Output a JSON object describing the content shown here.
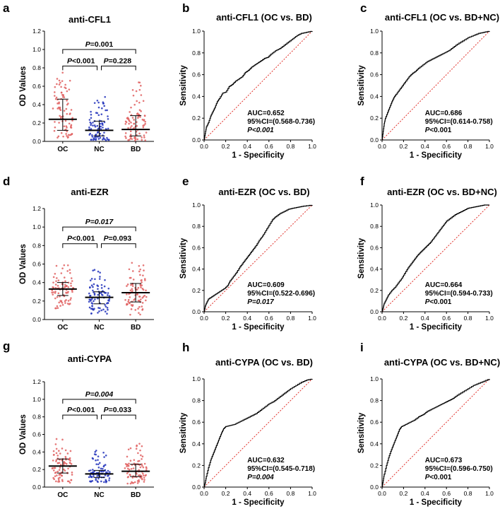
{
  "colors": {
    "oc": "#e06060",
    "nc": "#2233bb",
    "bd": "#e06060",
    "diag": "#e0302a",
    "roc": "#000000"
  },
  "chart_data": [
    {
      "panel": "a",
      "type": "scatter",
      "title": "anti-CFL1",
      "ylabel": "OD Values",
      "ylim": [
        0,
        1.2
      ],
      "yticks": [
        "0.0",
        "0.2",
        "0.4",
        "0.6",
        "0.8",
        "1.0",
        "1.2"
      ],
      "categories": [
        "OC",
        "NC",
        "BD"
      ],
      "groups": [
        {
          "name": "OC",
          "median": 0.24,
          "q1": 0.12,
          "q3": 0.46,
          "min": 0.03,
          "max": 0.75
        },
        {
          "name": "NC",
          "median": 0.12,
          "q1": 0.06,
          "q3": 0.22,
          "min": 0.01,
          "max": 0.5
        },
        {
          "name": "BD",
          "median": 0.13,
          "q1": 0.06,
          "q3": 0.28,
          "min": 0.01,
          "max": 0.71
        }
      ],
      "brackets": [
        {
          "from": "OC",
          "to": "BD",
          "y": 1.0,
          "prefix": "P",
          "value": "=0.001",
          "italic": false
        },
        {
          "from": "OC",
          "to": "NC",
          "y": 0.82,
          "prefix": "P",
          "value": "<0.001",
          "italic": false
        },
        {
          "from": "NC",
          "to": "BD",
          "y": 0.82,
          "prefix": "P",
          "value": "=0.228",
          "italic": false
        }
      ]
    },
    {
      "panel": "b",
      "type": "line",
      "title": "anti-CFL1 (OC vs. BD)",
      "xlabel": "1 - Specificity",
      "ylabel": "Sensitivity",
      "xlim": [
        0,
        1
      ],
      "ylim": [
        0,
        1
      ],
      "ticks": [
        "0.0",
        "0.2",
        "0.4",
        "0.6",
        "0.8",
        "1.0"
      ],
      "auc": "AUC=0.652",
      "ci": "95%CI=(0.568-0.736)",
      "p": "P<0.001",
      "p_italic": true,
      "roc": [
        [
          0,
          0
        ],
        [
          0.01,
          0.06
        ],
        [
          0.02,
          0.12
        ],
        [
          0.04,
          0.16
        ],
        [
          0.06,
          0.22
        ],
        [
          0.08,
          0.26
        ],
        [
          0.1,
          0.3
        ],
        [
          0.12,
          0.35
        ],
        [
          0.14,
          0.38
        ],
        [
          0.17,
          0.43
        ],
        [
          0.2,
          0.44
        ],
        [
          0.23,
          0.49
        ],
        [
          0.26,
          0.51
        ],
        [
          0.29,
          0.54
        ],
        [
          0.32,
          0.56
        ],
        [
          0.35,
          0.58
        ],
        [
          0.38,
          0.62
        ],
        [
          0.41,
          0.64
        ],
        [
          0.44,
          0.67
        ],
        [
          0.47,
          0.69
        ],
        [
          0.5,
          0.71
        ],
        [
          0.53,
          0.73
        ],
        [
          0.56,
          0.75
        ],
        [
          0.59,
          0.76
        ],
        [
          0.62,
          0.79
        ],
        [
          0.66,
          0.82
        ],
        [
          0.7,
          0.84
        ],
        [
          0.74,
          0.87
        ],
        [
          0.78,
          0.9
        ],
        [
          0.82,
          0.93
        ],
        [
          0.86,
          0.96
        ],
        [
          0.9,
          0.98
        ],
        [
          0.95,
          0.99
        ],
        [
          1,
          1
        ]
      ]
    },
    {
      "panel": "c",
      "type": "line",
      "title": "anti-CFL1 (OC vs. BD+NC)",
      "xlabel": "1 - Specificity",
      "ylabel": "Sensitivity",
      "xlim": [
        0,
        1
      ],
      "ylim": [
        0,
        1
      ],
      "ticks": [
        "0.0",
        "0.2",
        "0.4",
        "0.6",
        "0.8",
        "1.0"
      ],
      "auc": "AUC=0.686",
      "ci": "95%CI=(0.614-0.758)",
      "p": "P<0.001",
      "p_italic": false,
      "roc": [
        [
          0,
          0
        ],
        [
          0.01,
          0.08
        ],
        [
          0.02,
          0.15
        ],
        [
          0.03,
          0.2
        ],
        [
          0.05,
          0.25
        ],
        [
          0.07,
          0.3
        ],
        [
          0.09,
          0.35
        ],
        [
          0.11,
          0.39
        ],
        [
          0.13,
          0.42
        ],
        [
          0.16,
          0.46
        ],
        [
          0.19,
          0.5
        ],
        [
          0.22,
          0.54
        ],
        [
          0.25,
          0.58
        ],
        [
          0.28,
          0.61
        ],
        [
          0.31,
          0.63
        ],
        [
          0.34,
          0.66
        ],
        [
          0.38,
          0.69
        ],
        [
          0.42,
          0.72
        ],
        [
          0.46,
          0.74
        ],
        [
          0.5,
          0.76
        ],
        [
          0.54,
          0.78
        ],
        [
          0.58,
          0.8
        ],
        [
          0.62,
          0.82
        ],
        [
          0.66,
          0.85
        ],
        [
          0.7,
          0.88
        ],
        [
          0.75,
          0.91
        ],
        [
          0.8,
          0.94
        ],
        [
          0.85,
          0.96
        ],
        [
          0.9,
          0.98
        ],
        [
          0.95,
          0.99
        ],
        [
          1,
          1
        ]
      ]
    },
    {
      "panel": "d",
      "type": "scatter",
      "title": "anti-EZR",
      "ylabel": "OD Values",
      "ylim": [
        0,
        1.2
      ],
      "yticks": [
        "0.0",
        "0.2",
        "0.4",
        "0.6",
        "0.8",
        "1.0",
        "1.2"
      ],
      "categories": [
        "OC",
        "NC",
        "BD"
      ],
      "groups": [
        {
          "name": "OC",
          "median": 0.33,
          "q1": 0.26,
          "q3": 0.4,
          "min": 0.12,
          "max": 0.6
        },
        {
          "name": "NC",
          "median": 0.24,
          "q1": 0.17,
          "q3": 0.3,
          "min": 0.06,
          "max": 0.56
        },
        {
          "name": "BD",
          "median": 0.29,
          "q1": 0.19,
          "q3": 0.39,
          "min": 0.05,
          "max": 0.62
        }
      ],
      "brackets": [
        {
          "from": "OC",
          "to": "BD",
          "y": 1.0,
          "prefix": "P",
          "value": "=0.017",
          "italic": true
        },
        {
          "from": "OC",
          "to": "NC",
          "y": 0.82,
          "prefix": "P",
          "value": "<0.001",
          "italic": false
        },
        {
          "from": "NC",
          "to": "BD",
          "y": 0.82,
          "prefix": "P",
          "value": "=0.093",
          "italic": false
        }
      ]
    },
    {
      "panel": "e",
      "type": "line",
      "title": "anti-EZR (OC vs. BD)",
      "xlabel": "1 - Specificity",
      "ylabel": "Sensitivity",
      "xlim": [
        0,
        1
      ],
      "ylim": [
        0,
        1
      ],
      "ticks": [
        "0.0",
        "0.2",
        "0.4",
        "0.6",
        "0.8",
        "1.0"
      ],
      "auc": "AUC=0.609",
      "ci": "95%CI=(0.522-0.696)",
      "p": "P=0.017",
      "p_italic": true,
      "roc": [
        [
          0,
          0
        ],
        [
          0.01,
          0.05
        ],
        [
          0.02,
          0.08
        ],
        [
          0.04,
          0.12
        ],
        [
          0.07,
          0.14
        ],
        [
          0.1,
          0.16
        ],
        [
          0.13,
          0.18
        ],
        [
          0.16,
          0.2
        ],
        [
          0.19,
          0.22
        ],
        [
          0.22,
          0.25
        ],
        [
          0.24,
          0.29
        ],
        [
          0.27,
          0.33
        ],
        [
          0.3,
          0.37
        ],
        [
          0.33,
          0.42
        ],
        [
          0.36,
          0.46
        ],
        [
          0.39,
          0.5
        ],
        [
          0.42,
          0.54
        ],
        [
          0.45,
          0.58
        ],
        [
          0.48,
          0.62
        ],
        [
          0.51,
          0.67
        ],
        [
          0.54,
          0.71
        ],
        [
          0.57,
          0.76
        ],
        [
          0.6,
          0.81
        ],
        [
          0.63,
          0.86
        ],
        [
          0.66,
          0.89
        ],
        [
          0.7,
          0.92
        ],
        [
          0.74,
          0.94
        ],
        [
          0.78,
          0.96
        ],
        [
          0.82,
          0.97
        ],
        [
          0.87,
          0.98
        ],
        [
          0.92,
          0.99
        ],
        [
          1,
          1
        ]
      ]
    },
    {
      "panel": "f",
      "type": "line",
      "title": "anti-EZR (OC vs. BD+NC)",
      "xlabel": "1 - Specificity",
      "ylabel": "Sensitivity",
      "xlim": [
        0,
        1
      ],
      "ylim": [
        0,
        1
      ],
      "ticks": [
        "0.0",
        "0.2",
        "0.4",
        "0.6",
        "0.8",
        "1.0"
      ],
      "auc": "AUC=0.664",
      "ci": "95%CI=(0.594-0.733)",
      "p": "P<0.001",
      "p_italic": false,
      "roc": [
        [
          0,
          0
        ],
        [
          0.01,
          0.04
        ],
        [
          0.02,
          0.08
        ],
        [
          0.04,
          0.12
        ],
        [
          0.06,
          0.16
        ],
        [
          0.09,
          0.2
        ],
        [
          0.12,
          0.23
        ],
        [
          0.15,
          0.27
        ],
        [
          0.18,
          0.31
        ],
        [
          0.21,
          0.36
        ],
        [
          0.24,
          0.41
        ],
        [
          0.27,
          0.45
        ],
        [
          0.3,
          0.49
        ],
        [
          0.33,
          0.53
        ],
        [
          0.36,
          0.56
        ],
        [
          0.39,
          0.59
        ],
        [
          0.42,
          0.62
        ],
        [
          0.45,
          0.65
        ],
        [
          0.48,
          0.69
        ],
        [
          0.51,
          0.73
        ],
        [
          0.54,
          0.77
        ],
        [
          0.57,
          0.81
        ],
        [
          0.6,
          0.85
        ],
        [
          0.64,
          0.88
        ],
        [
          0.68,
          0.91
        ],
        [
          0.72,
          0.93
        ],
        [
          0.76,
          0.95
        ],
        [
          0.8,
          0.97
        ],
        [
          0.85,
          0.98
        ],
        [
          0.9,
          0.99
        ],
        [
          0.95,
          1
        ],
        [
          1,
          1
        ]
      ]
    },
    {
      "panel": "g",
      "type": "scatter",
      "title": "anti-CYPA",
      "ylabel": "OD Values",
      "ylim": [
        0,
        1.2
      ],
      "yticks": [
        "0.0",
        "0.2",
        "0.4",
        "0.6",
        "0.8",
        "1.0",
        "1.2"
      ],
      "categories": [
        "OC",
        "NC",
        "BD"
      ],
      "groups": [
        {
          "name": "OC",
          "median": 0.24,
          "q1": 0.16,
          "q3": 0.32,
          "min": 0.05,
          "max": 0.57
        },
        {
          "name": "NC",
          "median": 0.15,
          "q1": 0.11,
          "q3": 0.19,
          "min": 0.05,
          "max": 0.42
        },
        {
          "name": "BD",
          "median": 0.18,
          "q1": 0.12,
          "q3": 0.26,
          "min": 0.04,
          "max": 0.5
        }
      ],
      "brackets": [
        {
          "from": "OC",
          "to": "BD",
          "y": 1.0,
          "prefix": "P",
          "value": "=0.004",
          "italic": true
        },
        {
          "from": "OC",
          "to": "NC",
          "y": 0.82,
          "prefix": "P",
          "value": "<0.001",
          "italic": false
        },
        {
          "from": "NC",
          "to": "BD",
          "y": 0.82,
          "prefix": "P",
          "value": "=0.033",
          "italic": false
        }
      ]
    },
    {
      "panel": "h",
      "type": "line",
      "title": "anti-CYPA (OC vs. BD)",
      "xlabel": "1 - Specificity",
      "ylabel": "Sensitivity",
      "xlim": [
        0,
        1
      ],
      "ylim": [
        0,
        1
      ],
      "ticks": [
        "0.0",
        "0.2",
        "0.4",
        "0.6",
        "0.8",
        "1.0"
      ],
      "auc": "AUC=0.632",
      "ci": "95%CI=(0.545-0.718)",
      "p": "P=0.004",
      "p_italic": true,
      "roc": [
        [
          0,
          0
        ],
        [
          0.01,
          0.04
        ],
        [
          0.02,
          0.1
        ],
        [
          0.04,
          0.18
        ],
        [
          0.06,
          0.25
        ],
        [
          0.08,
          0.3
        ],
        [
          0.1,
          0.35
        ],
        [
          0.12,
          0.4
        ],
        [
          0.14,
          0.45
        ],
        [
          0.16,
          0.5
        ],
        [
          0.18,
          0.54
        ],
        [
          0.2,
          0.56
        ],
        [
          0.24,
          0.57
        ],
        [
          0.28,
          0.58
        ],
        [
          0.32,
          0.6
        ],
        [
          0.36,
          0.62
        ],
        [
          0.4,
          0.64
        ],
        [
          0.44,
          0.66
        ],
        [
          0.48,
          0.68
        ],
        [
          0.52,
          0.71
        ],
        [
          0.56,
          0.74
        ],
        [
          0.6,
          0.77
        ],
        [
          0.64,
          0.79
        ],
        [
          0.68,
          0.82
        ],
        [
          0.72,
          0.85
        ],
        [
          0.76,
          0.88
        ],
        [
          0.8,
          0.91
        ],
        [
          0.85,
          0.94
        ],
        [
          0.9,
          0.97
        ],
        [
          0.95,
          0.99
        ],
        [
          1,
          1
        ]
      ]
    },
    {
      "panel": "i",
      "type": "line",
      "title": "anti-CYPA (OC vs. BD+NC)",
      "xlabel": "1 - Specificity",
      "ylabel": "Sensitivity",
      "xlim": [
        0,
        1
      ],
      "ylim": [
        0,
        1
      ],
      "ticks": [
        "0.0",
        "0.2",
        "0.4",
        "0.6",
        "0.8",
        "1.0"
      ],
      "auc": "AUC=0.673",
      "ci": "95%CI=(0.596-0.750)",
      "p": "P<0.001",
      "p_italic": false,
      "roc": [
        [
          0,
          0
        ],
        [
          0.01,
          0.06
        ],
        [
          0.02,
          0.12
        ],
        [
          0.04,
          0.2
        ],
        [
          0.06,
          0.27
        ],
        [
          0.08,
          0.33
        ],
        [
          0.1,
          0.38
        ],
        [
          0.12,
          0.43
        ],
        [
          0.14,
          0.48
        ],
        [
          0.16,
          0.53
        ],
        [
          0.18,
          0.56
        ],
        [
          0.22,
          0.58
        ],
        [
          0.26,
          0.6
        ],
        [
          0.3,
          0.62
        ],
        [
          0.34,
          0.65
        ],
        [
          0.38,
          0.67
        ],
        [
          0.42,
          0.7
        ],
        [
          0.46,
          0.72
        ],
        [
          0.5,
          0.74
        ],
        [
          0.54,
          0.76
        ],
        [
          0.58,
          0.78
        ],
        [
          0.62,
          0.8
        ],
        [
          0.66,
          0.82
        ],
        [
          0.7,
          0.85
        ],
        [
          0.75,
          0.88
        ],
        [
          0.8,
          0.91
        ],
        [
          0.85,
          0.94
        ],
        [
          0.9,
          0.96
        ],
        [
          0.95,
          0.98
        ],
        [
          1,
          1
        ]
      ]
    }
  ]
}
